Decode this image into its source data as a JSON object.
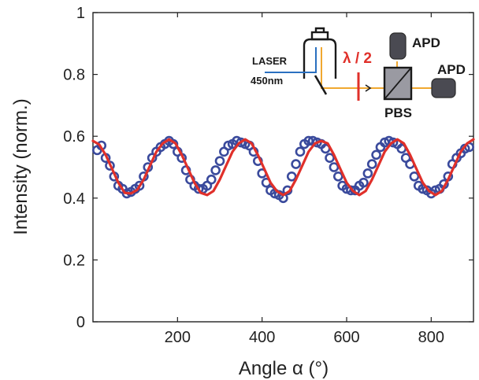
{
  "chart_data": {
    "type": "scatter",
    "xlabel": "Angle α (°)",
    "ylabel": "Intensity (norm.)",
    "xlim": [
      0,
      900
    ],
    "ylim": [
      0,
      1
    ],
    "xticks": [
      200,
      400,
      600,
      800
    ],
    "yticks": [
      0,
      0.2,
      0.4,
      0.6,
      0.8,
      1
    ],
    "ytick_labels": [
      "0",
      "0.2",
      "0.4",
      "0.6",
      "0.8",
      "1"
    ],
    "grid": false,
    "legend": "none",
    "series": [
      {
        "kind": "scatter",
        "marker": "open-circle",
        "color": "#3a4a9c",
        "x": [
          10,
          20,
          30,
          40,
          50,
          60,
          70,
          80,
          90,
          100,
          110,
          120,
          130,
          140,
          150,
          160,
          170,
          180,
          190,
          200,
          210,
          220,
          230,
          240,
          250,
          260,
          270,
          280,
          290,
          300,
          310,
          320,
          330,
          340,
          350,
          360,
          370,
          380,
          390,
          400,
          410,
          420,
          430,
          440,
          450,
          460,
          470,
          480,
          490,
          500,
          510,
          520,
          530,
          540,
          550,
          560,
          570,
          580,
          590,
          600,
          610,
          620,
          630,
          640,
          650,
          660,
          670,
          680,
          690,
          700,
          710,
          720,
          730,
          740,
          750,
          760,
          770,
          780,
          790,
          800,
          810,
          820,
          830,
          840,
          850,
          860,
          870,
          880,
          890
        ],
        "y": [
          0.555,
          0.57,
          0.53,
          0.505,
          0.47,
          0.44,
          0.43,
          0.415,
          0.42,
          0.43,
          0.44,
          0.47,
          0.5,
          0.53,
          0.55,
          0.565,
          0.575,
          0.585,
          0.575,
          0.55,
          0.53,
          0.49,
          0.46,
          0.44,
          0.43,
          0.43,
          0.44,
          0.46,
          0.49,
          0.52,
          0.55,
          0.57,
          0.575,
          0.585,
          0.58,
          0.575,
          0.57,
          0.55,
          0.52,
          0.48,
          0.45,
          0.425,
          0.415,
          0.41,
          0.4,
          0.425,
          0.47,
          0.51,
          0.55,
          0.575,
          0.585,
          0.585,
          0.58,
          0.575,
          0.56,
          0.53,
          0.5,
          0.47,
          0.44,
          0.43,
          0.425,
          0.425,
          0.44,
          0.45,
          0.48,
          0.51,
          0.54,
          0.565,
          0.58,
          0.585,
          0.58,
          0.575,
          0.56,
          0.53,
          0.51,
          0.47,
          0.44,
          0.43,
          0.425,
          0.415,
          0.425,
          0.43,
          0.445,
          0.47,
          0.51,
          0.53,
          0.545,
          0.56,
          0.565
        ]
      },
      {
        "kind": "line",
        "color": "#e0302a",
        "x": [
          0,
          15,
          30,
          45,
          60,
          75,
          90,
          105,
          120,
          135,
          150,
          165,
          180,
          195,
          210,
          225,
          240,
          255,
          270,
          285,
          300,
          315,
          330,
          345,
          360,
          375,
          390,
          405,
          420,
          435,
          450,
          465,
          480,
          495,
          510,
          525,
          540,
          555,
          570,
          585,
          600,
          615,
          630,
          645,
          660,
          675,
          690,
          705,
          720,
          735,
          750,
          765,
          780,
          795,
          810,
          825,
          840,
          855,
          870,
          885,
          900
        ],
        "y": [
          0.585,
          0.573,
          0.54,
          0.495,
          0.45,
          0.417,
          0.415,
          0.427,
          0.46,
          0.505,
          0.55,
          0.577,
          0.59,
          0.577,
          0.54,
          0.495,
          0.45,
          0.417,
          0.41,
          0.423,
          0.46,
          0.505,
          0.55,
          0.577,
          0.59,
          0.577,
          0.54,
          0.495,
          0.45,
          0.423,
          0.41,
          0.423,
          0.46,
          0.505,
          0.55,
          0.577,
          0.585,
          0.577,
          0.54,
          0.495,
          0.45,
          0.423,
          0.41,
          0.423,
          0.46,
          0.505,
          0.55,
          0.577,
          0.59,
          0.577,
          0.54,
          0.495,
          0.45,
          0.423,
          0.41,
          0.423,
          0.46,
          0.505,
          0.55,
          0.577,
          0.59
        ]
      }
    ]
  },
  "inset": {
    "laser_label": "LASER",
    "wavelength_label": "450nm",
    "waveplate_label": "λ / 2",
    "detector_top_label": "APD",
    "detector_right_label": "APD",
    "splitter_label": "PBS",
    "beam_color": "#f0a830",
    "fiber_color": "#2a70c0",
    "waveplate_color": "#e0302a"
  }
}
